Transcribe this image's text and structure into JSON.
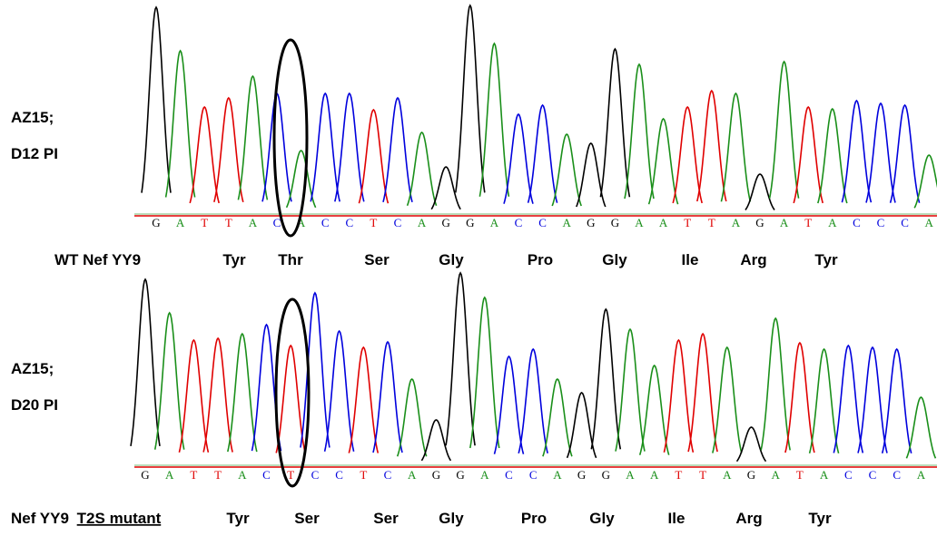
{
  "panels": [
    {
      "label_lines": [
        "AZ15;",
        "D12 PI"
      ],
      "bases": [
        "G",
        "A",
        "T",
        "T",
        "A",
        "C",
        "A",
        "C",
        "C",
        "T",
        "C",
        "A",
        "G",
        "G",
        "A",
        "C",
        "C",
        "A",
        "G",
        "G",
        "A",
        "A",
        "T",
        "T",
        "A",
        "G",
        "A",
        "T",
        "A",
        "C",
        "C",
        "C",
        "A"
      ],
      "translation": {
        "name": "WT Nef YY9",
        "amino_acids": [
          "Tyr",
          "Thr",
          "Ser",
          "Gly",
          "Pro",
          "Gly",
          "Ile",
          "Arg",
          "Tyr"
        ]
      }
    },
    {
      "label_lines": [
        "AZ15;",
        "D20 PI"
      ],
      "bases": [
        "G",
        "A",
        "T",
        "T",
        "A",
        "C",
        "T",
        "C",
        "C",
        "T",
        "C",
        "A",
        "G",
        "G",
        "A",
        "C",
        "C",
        "A",
        "G",
        "G",
        "A",
        "A",
        "T",
        "T",
        "A",
        "G",
        "A",
        "T",
        "A",
        "C",
        "C",
        "C",
        "A"
      ],
      "translation": {
        "name": "Nef YY9 ",
        "name_underlined": "T2S mutant",
        "amino_acids": [
          "Tyr",
          "Ser",
          "Ser",
          "Gly",
          "Pro",
          "Gly",
          "Ile",
          "Arg",
          "Tyr"
        ]
      }
    }
  ]
}
